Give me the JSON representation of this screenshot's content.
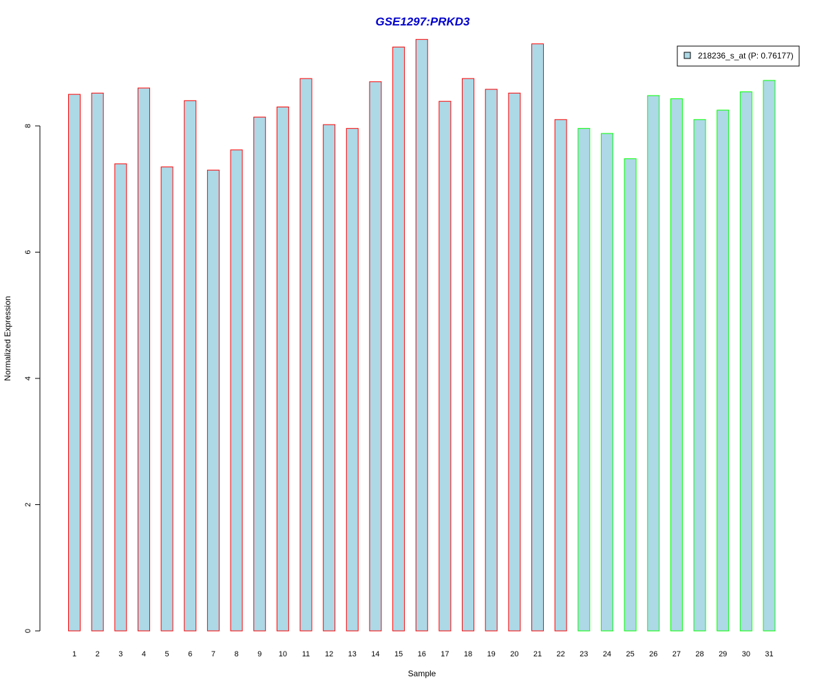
{
  "chart_data": {
    "type": "bar",
    "title": "GSE1297:PRKD3",
    "xlabel": "Sample",
    "ylabel": "Normalized Expression",
    "ylim": [
      0,
      9.5
    ],
    "yticks": [
      "0",
      "2",
      "4",
      "6",
      "8"
    ],
    "categories": [
      "1",
      "2",
      "3",
      "4",
      "5",
      "6",
      "7",
      "8",
      "9",
      "10",
      "11",
      "12",
      "13",
      "14",
      "15",
      "16",
      "17",
      "18",
      "19",
      "20",
      "21",
      "22",
      "23",
      "24",
      "25",
      "26",
      "27",
      "28",
      "29",
      "30",
      "31"
    ],
    "series": [
      {
        "name": "218236_s_at (P: 0.76177)",
        "values": [
          8.5,
          8.52,
          7.4,
          8.6,
          7.35,
          8.4,
          7.3,
          7.62,
          8.14,
          8.3,
          8.75,
          8.02,
          7.96,
          8.7,
          9.25,
          9.37,
          8.39,
          8.75,
          8.58,
          8.52,
          9.3,
          8.1,
          7.96,
          7.88,
          7.48,
          8.48,
          8.43,
          8.1,
          8.25,
          8.54,
          8.72
        ]
      }
    ],
    "legend_label": "218236_s_at (P: 0.76177)",
    "legend_position": "top-right",
    "group_sizes": [
      22,
      9
    ],
    "colors": {
      "fill": "#add8e6",
      "group_1_border": "#ff0000",
      "group_2_border": "#00ff00",
      "title": "#0000cd",
      "axis": "#000000"
    },
    "grid": false
  }
}
